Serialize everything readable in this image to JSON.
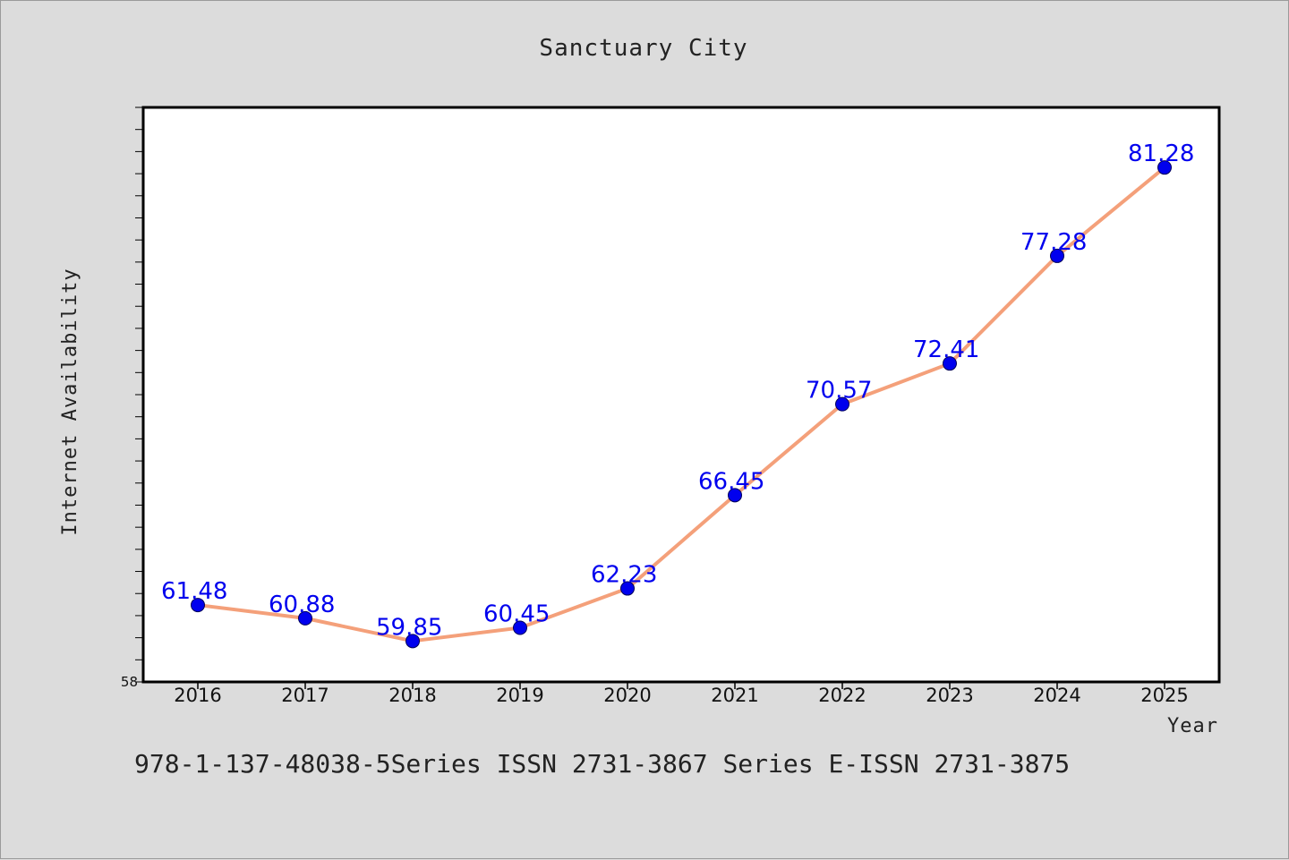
{
  "chart_data": {
    "type": "line",
    "title": "Sanctuary City",
    "xlabel": "Year",
    "ylabel": "Internet Availability",
    "x": [
      "2016",
      "2017",
      "2018",
      "2019",
      "2020",
      "2021",
      "2022",
      "2023",
      "2024",
      "2025"
    ],
    "series": [
      {
        "values": [
          61.48,
          60.88,
          59.85,
          60.45,
          62.23,
          66.45,
          70.57,
          72.41,
          77.28,
          81.28
        ]
      }
    ],
    "data_labels": [
      "61.48",
      "60.88",
      "59.85",
      "60.45",
      "62.23",
      "66.45",
      "70.57",
      "72.41",
      "77.28",
      "81.28"
    ],
    "ylim": [
      58,
      84
    ],
    "ytick_labels": [
      {
        "value": 58,
        "label": "58"
      }
    ],
    "grid": false,
    "colors": {
      "line": "#f4a07a",
      "marker": "#0000ee",
      "label": "#0000ee",
      "frame": "#000000",
      "plot_bg": "#ffffff",
      "page_bg": "#dcdcdc"
    }
  },
  "footer": {
    "text": "978-1-137-48038-5Series ISSN 2731-3867 Series E-ISSN 2731-3875"
  }
}
